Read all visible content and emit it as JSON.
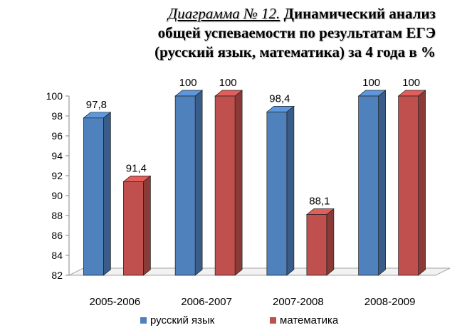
{
  "title": {
    "number": "Диаграмма № 12.",
    "line1": "Динамический анализ",
    "line2": "общей успеваемости по результатам ЕГЭ",
    "line3": "(русский язык, математика) за 4 года в %"
  },
  "chart_data": {
    "type": "bar",
    "categories": [
      "2005-2006",
      "2006-2007",
      "2007-2008",
      "2008-2009"
    ],
    "series": [
      {
        "name": "русский язык",
        "values": [
          97.8,
          100,
          98.4,
          100
        ],
        "labels": [
          "97,8",
          "100",
          "98,4",
          "100"
        ],
        "color": "#4f81bd"
      },
      {
        "name": "математика",
        "values": [
          91.4,
          100,
          88.1,
          100
        ],
        "labels": [
          "91,4",
          "100",
          "88,1",
          "100"
        ],
        "color": "#c0504d"
      }
    ],
    "ylim": [
      82,
      100
    ],
    "yticks": [
      "82",
      "84",
      "86",
      "88",
      "90",
      "92",
      "94",
      "96",
      "98",
      "100"
    ],
    "grid": false,
    "legend_position": "bottom",
    "three_d": true
  }
}
